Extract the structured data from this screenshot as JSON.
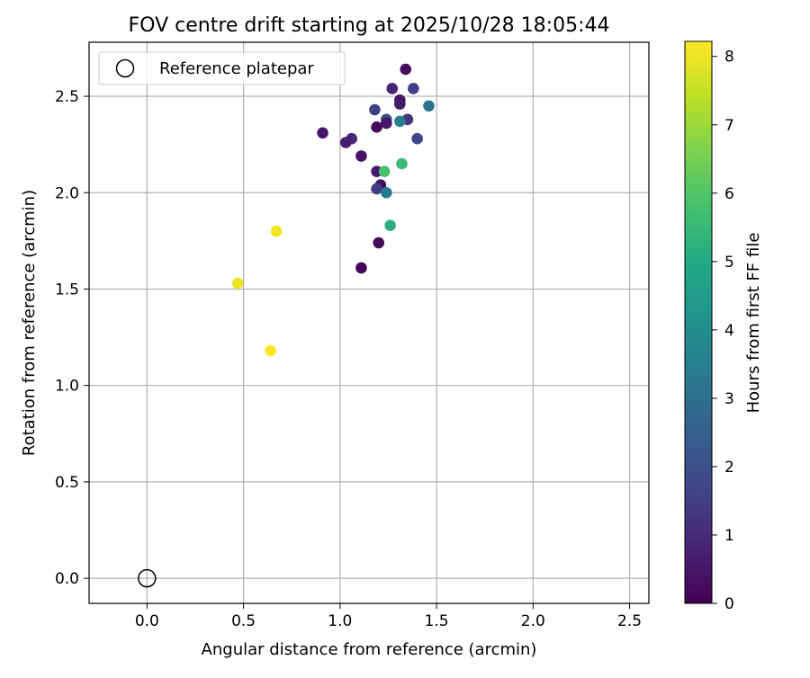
{
  "chart_data": {
    "type": "scatter",
    "title": "FOV centre drift starting at 2025/10/28 18:05:44",
    "xlabel": "Angular distance from reference (arcmin)",
    "ylabel": "Rotation from reference (arcmin)",
    "xlim": [
      -0.3,
      2.6
    ],
    "ylim": [
      -0.13,
      2.78
    ],
    "xticks": [
      0.0,
      0.5,
      1.0,
      1.5,
      2.0,
      2.5
    ],
    "xtick_labels": [
      "0.0",
      "0.5",
      "1.0",
      "1.5",
      "2.0",
      "2.5"
    ],
    "yticks": [
      0.0,
      0.5,
      1.0,
      1.5,
      2.0,
      2.5
    ],
    "ytick_labels": [
      "0.0",
      "0.5",
      "1.0",
      "1.5",
      "2.0",
      "2.5"
    ],
    "grid": true,
    "legend": {
      "placement": "top-left",
      "label": "Reference platepar"
    },
    "reference_point": {
      "x": 0.0,
      "y": 0.0
    },
    "colorbar": {
      "label": "Hours from first FF file",
      "min": 0,
      "max": 8.22,
      "ticks": [
        0,
        1,
        2,
        3,
        4,
        5,
        6,
        7,
        8
      ],
      "tick_labels": [
        "0",
        "1",
        "2",
        "3",
        "4",
        "5",
        "6",
        "7",
        "8"
      ],
      "colormap": "viridis"
    },
    "points": [
      {
        "x": 1.34,
        "y": 2.64,
        "h": 0.3
      },
      {
        "x": 1.27,
        "y": 2.54,
        "h": 0.8
      },
      {
        "x": 1.38,
        "y": 2.54,
        "h": 1.5
      },
      {
        "x": 1.31,
        "y": 2.48,
        "h": 0.4
      },
      {
        "x": 1.31,
        "y": 2.46,
        "h": 0.6
      },
      {
        "x": 1.46,
        "y": 2.45,
        "h": 3.2
      },
      {
        "x": 1.18,
        "y": 2.43,
        "h": 1.6
      },
      {
        "x": 1.24,
        "y": 2.38,
        "h": 1.9
      },
      {
        "x": 1.35,
        "y": 2.38,
        "h": 1.2
      },
      {
        "x": 1.31,
        "y": 2.37,
        "h": 3.5
      },
      {
        "x": 1.24,
        "y": 2.36,
        "h": 0.5
      },
      {
        "x": 1.19,
        "y": 2.34,
        "h": 0.2
      },
      {
        "x": 0.91,
        "y": 2.31,
        "h": 0.5
      },
      {
        "x": 1.4,
        "y": 2.28,
        "h": 1.8
      },
      {
        "x": 1.06,
        "y": 2.28,
        "h": 0.9
      },
      {
        "x": 1.03,
        "y": 2.26,
        "h": 0.7
      },
      {
        "x": 1.11,
        "y": 2.19,
        "h": 0.4
      },
      {
        "x": 1.32,
        "y": 2.15,
        "h": 5.6
      },
      {
        "x": 1.19,
        "y": 2.11,
        "h": 0.6
      },
      {
        "x": 1.23,
        "y": 2.11,
        "h": 5.8
      },
      {
        "x": 1.21,
        "y": 2.04,
        "h": 0.3
      },
      {
        "x": 1.19,
        "y": 2.02,
        "h": 1.5
      },
      {
        "x": 1.24,
        "y": 2.0,
        "h": 3.4
      },
      {
        "x": 1.26,
        "y": 1.83,
        "h": 5.2
      },
      {
        "x": 1.2,
        "y": 1.74,
        "h": 0.2
      },
      {
        "x": 1.11,
        "y": 1.61,
        "h": 0.1
      },
      {
        "x": 0.67,
        "y": 1.8,
        "h": 8.1
      },
      {
        "x": 0.47,
        "y": 1.53,
        "h": 8.0
      },
      {
        "x": 0.64,
        "y": 1.18,
        "h": 8.2
      }
    ]
  }
}
